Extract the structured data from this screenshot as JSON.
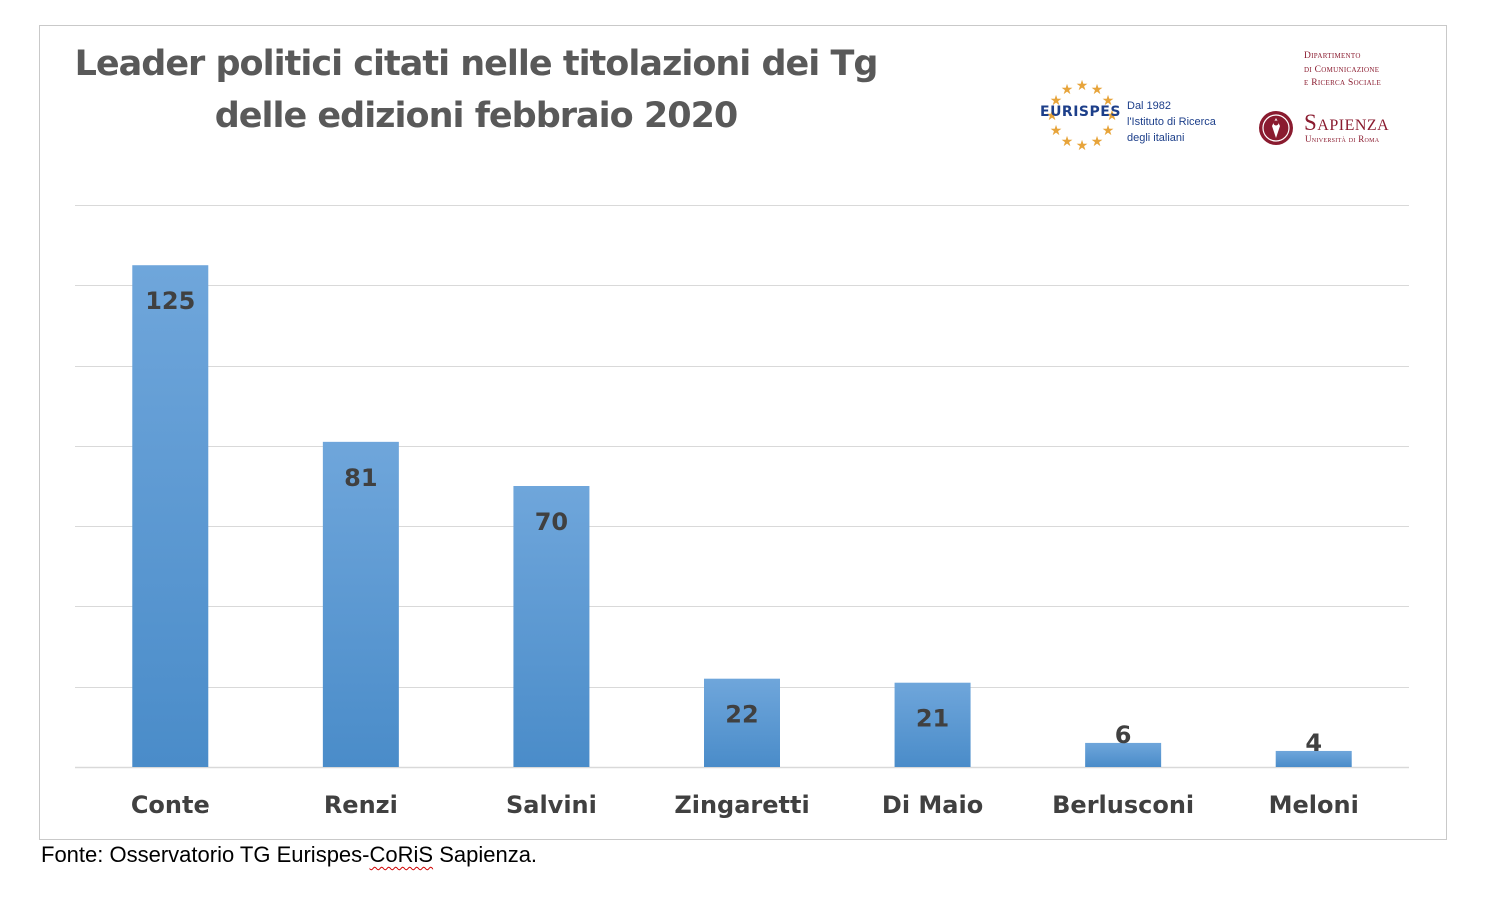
{
  "title_lines": [
    "Leader politici citati nelle titolazioni dei Tg",
    "delle edizioni febbraio 2020"
  ],
  "source_prefix": "Fonte: Osservatorio TG Eurispes-",
  "source_flagged": "CoRiS",
  "source_suffix": " Sapienza.",
  "logos": {
    "eurispes": {
      "name": "EURISPES",
      "tagline": [
        "Dal 1982",
        "l'Istituto di Ricerca",
        "degli italiani"
      ]
    },
    "sapienza": {
      "department": [
        "Dipartimento",
        "di Comunicazione",
        "e Ricerca Sociale"
      ],
      "name": "Sapienza",
      "subtitle": "Università di Roma"
    }
  },
  "colors": {
    "bar_top": "#6fa6db",
    "bar_bottom": "#4a8cc9",
    "grid": "#d9d9d9",
    "text": "#404040",
    "title": "#595959",
    "eurispes": "#1d3f8a",
    "eurispes_stars": "#e7a43a",
    "sapienza": "#8a1b2f"
  },
  "chart_data": {
    "type": "bar",
    "categories": [
      "Conte",
      "Renzi",
      "Salvini",
      "Zingaretti",
      "Di Maio",
      "Berlusconi",
      "Meloni"
    ],
    "values": [
      125,
      81,
      70,
      22,
      21,
      6,
      4
    ],
    "ylim": [
      0,
      140
    ],
    "grid": true,
    "y_gridline_step": 20,
    "data_labels": true,
    "y_tick_labels_shown": false,
    "legend": "none"
  }
}
